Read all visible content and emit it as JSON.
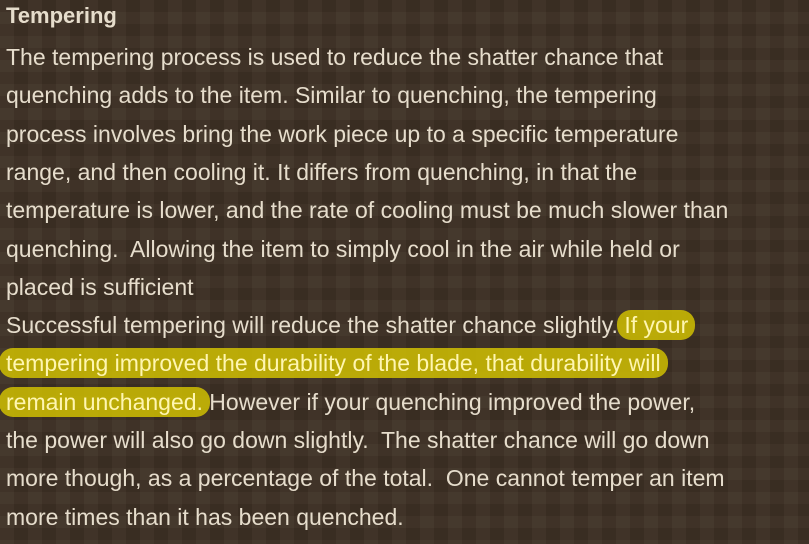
{
  "document": {
    "title": "Tempering",
    "lines": [
      [
        {
          "text": "The tempering process is used to reduce the shatter chance that"
        }
      ],
      [
        {
          "text": "quenching adds to the item. Similar to quenching, the tempering"
        }
      ],
      [
        {
          "text": "process involves bring the work piece up to a specific temperature"
        }
      ],
      [
        {
          "text": "range, and then cooling it. It differs from quenching, in that the"
        }
      ],
      [
        {
          "text": "temperature is lower, and the rate of cooling must be much slower than"
        }
      ],
      [
        {
          "text": "quenching.  Allowing the item to simply cool in the air while held or"
        }
      ],
      [
        {
          "text": "placed is sufficient"
        }
      ],
      [
        {
          "text": "Successful tempering will reduce the shatter chance slightly. "
        },
        {
          "text": "If your",
          "highlight": true
        }
      ],
      [
        {
          "text": "tempering improved the durability of the blade, that durability will",
          "highlight": true
        }
      ],
      [
        {
          "text": "remain unchanged.",
          "highlight": true
        },
        {
          "text": " However if your quenching improved the power,"
        }
      ],
      [
        {
          "text": "the power will also go down slightly.  The shatter chance will go down"
        }
      ],
      [
        {
          "text": "more though, as a percentage of the total.  One cannot temper an item"
        }
      ],
      [
        {
          "text": "more times than it has been quenched."
        }
      ]
    ]
  }
}
